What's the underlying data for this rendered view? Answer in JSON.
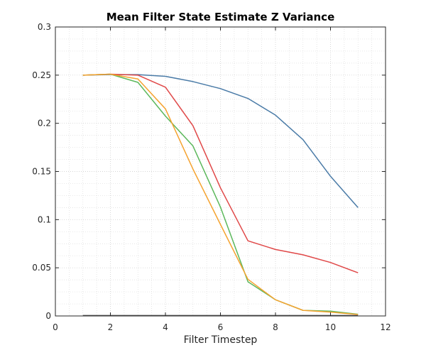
{
  "chart_data": {
    "type": "line",
    "title": "Mean Filter State Estimate Z Variance",
    "xlabel": "Filter Timestep",
    "ylabel": "",
    "xlim": [
      0,
      12
    ],
    "ylim": [
      0,
      0.3
    ],
    "xticks": [
      "0",
      "2",
      "4",
      "6",
      "8",
      "10",
      "12"
    ],
    "yticks": [
      "0",
      "0.05",
      "0.1",
      "0.15",
      "0.2",
      "0.25",
      "0.3"
    ],
    "grid": "dotted-minor",
    "x": [
      1,
      2,
      3,
      4,
      5,
      6,
      7,
      8,
      9,
      10,
      11
    ],
    "series": [
      {
        "color": "#4a7ba7",
        "values": [
          0.25,
          0.2505,
          0.2505,
          0.2488,
          0.2433,
          0.236,
          0.2258,
          0.2085,
          0.183,
          0.145,
          0.1125
        ]
      },
      {
        "color": "#e04848",
        "values": [
          0.25,
          0.251,
          0.25,
          0.2375,
          0.1975,
          0.133,
          0.078,
          0.069,
          0.0635,
          0.0555,
          0.0448
        ]
      },
      {
        "color": "#5cb85c",
        "values": [
          0.25,
          0.251,
          0.2425,
          0.2075,
          0.1765,
          0.113,
          0.0355,
          0.0168,
          0.0058,
          0.005,
          0.0018
        ]
      },
      {
        "color": "#f5a330",
        "values": [
          0.25,
          0.251,
          0.246,
          0.215,
          0.1525,
          0.095,
          0.038,
          0.0168,
          0.0058,
          0.004,
          0.0015
        ]
      },
      {
        "color": "#555555",
        "values": [
          0.0005,
          0.0005,
          0.0005,
          0.0005,
          0.0005,
          0.0005,
          0.0005,
          0.0005,
          0.0005,
          0.0005,
          0.0005
        ]
      }
    ]
  }
}
